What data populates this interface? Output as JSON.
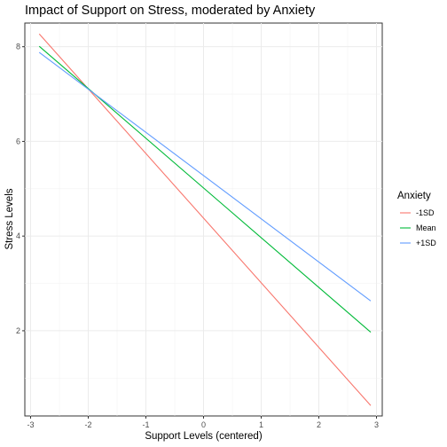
{
  "chart_data": {
    "type": "line",
    "title": "Impact of Support on Stress, moderated by Anxiety",
    "xlabel": "Support Levels (centered)",
    "ylabel": "Stress Levels",
    "xlim": [
      -3.1,
      3.1
    ],
    "ylim": [
      0.2,
      8.5
    ],
    "x_ticks": [
      -3,
      -2,
      -1,
      0,
      1,
      2,
      3
    ],
    "y_ticks": [
      2,
      4,
      6,
      8
    ],
    "grid": true,
    "legend": {
      "title": "Anxiety",
      "placement": "right"
    },
    "series": [
      {
        "name": "-1SD",
        "color": "#F8766D",
        "x": [
          -2.85,
          2.9
        ],
        "y": [
          8.27,
          0.42
        ]
      },
      {
        "name": "Mean",
        "color": "#00BA38",
        "x": [
          -2.85,
          2.9
        ],
        "y": [
          8.01,
          1.97
        ]
      },
      {
        "name": "+1SD",
        "color": "#619CFF",
        "x": [
          -2.85,
          2.9
        ],
        "y": [
          7.88,
          2.63
        ]
      }
    ]
  }
}
